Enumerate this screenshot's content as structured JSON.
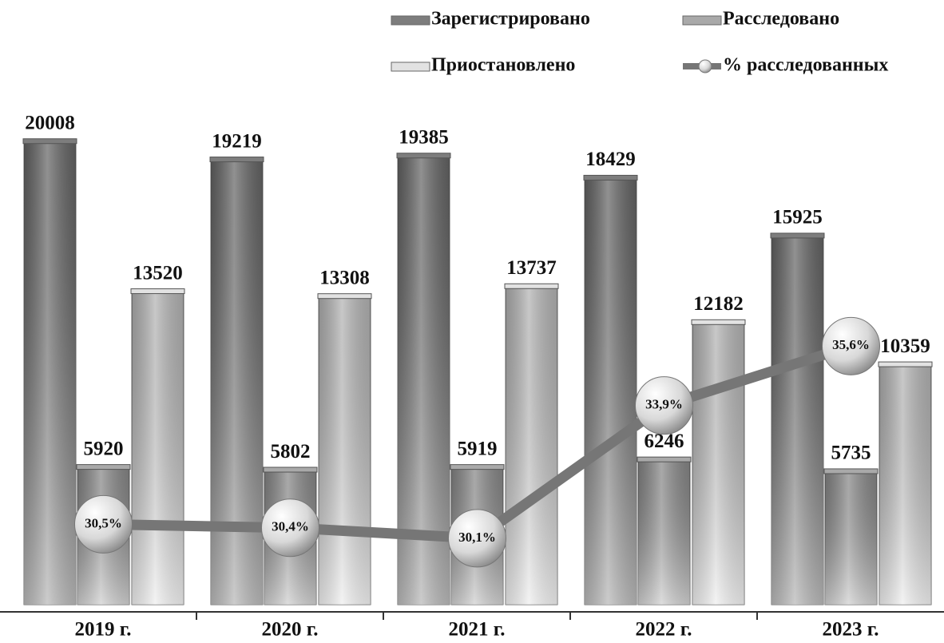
{
  "chart_data": {
    "type": "bar",
    "categories": [
      "2019 г.",
      "2020 г.",
      "2021 г.",
      "2022 г.",
      "2023 г."
    ],
    "series": [
      {
        "name": "Зарегистрировано",
        "color": "#7d7d7d",
        "values": [
          20008,
          19219,
          19385,
          18429,
          15925
        ]
      },
      {
        "name": "Расследовано",
        "color": "#a9a9a9",
        "values": [
          5920,
          5802,
          5919,
          6246,
          5735
        ]
      },
      {
        "name": "Приостановлено",
        "color": "#e2e2e2",
        "values": [
          13520,
          13308,
          13737,
          12182,
          10359
        ]
      },
      {
        "name": "% расследованных",
        "color": "#767676",
        "type": "line",
        "axis": "y2",
        "values": [
          30.5,
          30.4,
          30.1,
          33.9,
          35.6
        ],
        "value_labels": [
          "30,5%",
          "30,4%",
          "30,1%",
          "33,9%",
          "35,6%"
        ]
      }
    ],
    "ylim": [
      0,
      21000
    ],
    "y2lim": [
      28.2,
      42.1
    ],
    "legend": "top-right"
  }
}
